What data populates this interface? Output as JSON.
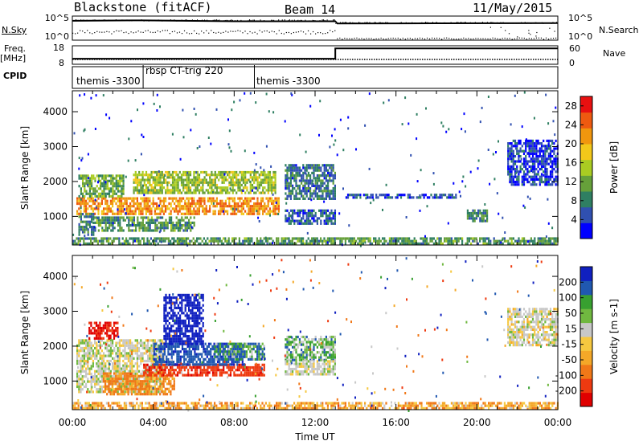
{
  "header": {
    "station": "Blackstone (fitACF)",
    "beam": "Beam 14",
    "date": "11/May/2015"
  },
  "side_labels": {
    "nsky": "N.Sky",
    "freq": "Freq.",
    "freq_unit": "[MHz]",
    "cpid": "CPID",
    "nsearch": "N.Search",
    "nave": "Nave"
  },
  "programs": [
    {
      "label": "themis -3300",
      "start_hour": 0.0
    },
    {
      "label": "rbsp CT-trig 220",
      "start_hour": 3.5
    },
    {
      "label": "themis -3300",
      "start_hour": 9.0
    }
  ],
  "colors": {
    "power": [
      "#0000ff",
      "#3050b0",
      "#2f7f62",
      "#66a03a",
      "#aacc22",
      "#f2c81a",
      "#f0960e",
      "#ee5a10",
      "#e81010"
    ],
    "velocity": [
      "#e00000",
      "#ee3a10",
      "#f07818",
      "#f4a828",
      "#f6c840",
      "#c8c8c8",
      "#70b840",
      "#38a030",
      "#2058b0",
      "#1020c0"
    ]
  },
  "chart_data": [
    {
      "type": "line",
      "name": "noise-panel",
      "left_axis": {
        "label": "N.Sky",
        "ticks": [
          "10^5",
          "10^0"
        ]
      },
      "right_axis": {
        "label": "N.Search",
        "ticks": [
          "10^5",
          "10^0"
        ]
      },
      "x": [
        0,
        3,
        3.5,
        8,
        13,
        13.1,
        18,
        24
      ],
      "series": [
        {
          "values": [
            4.3,
            4.4,
            4.4,
            4.2,
            4.2,
            3.7,
            3.75,
            3.8
          ]
        }
      ]
    },
    {
      "type": "line",
      "name": "freq-nave-panel",
      "left_axis": {
        "label": "Freq. [MHz]",
        "ticks": [
          "18",
          "8"
        ]
      },
      "right_axis": {
        "label": "Nave",
        "ticks": [
          "60",
          "0"
        ]
      },
      "x": [
        0,
        13,
        13,
        24
      ],
      "series": [
        {
          "values": [
            10.2,
            10.2,
            18,
            18
          ]
        },
        {
          "values": [
            30,
            30,
            30,
            30
          ]
        }
      ]
    },
    {
      "type": "heatmap",
      "name": "power-panel",
      "xlabel": "",
      "ylabel": "Slant Range [km]",
      "xlim": [
        0,
        24
      ],
      "ylim": [
        180,
        4600
      ],
      "yticks": [
        "1000",
        "2000",
        "3000",
        "4000"
      ],
      "colorbar": {
        "label": "Power [dB]",
        "ticks": [
          "4",
          "8",
          "12",
          "16",
          "20",
          "24",
          "28"
        ],
        "range": [
          0,
          30
        ]
      },
      "regions": [
        {
          "x0": 0.2,
          "x1": 10.2,
          "y0": 1100,
          "y1": 1550,
          "value": 22
        },
        {
          "x0": 0.3,
          "x1": 2.5,
          "y0": 1600,
          "y1": 2200,
          "value": 12
        },
        {
          "x0": 3.0,
          "x1": 10.0,
          "y0": 1700,
          "y1": 2300,
          "value": 14
        },
        {
          "x0": 1.0,
          "x1": 6.0,
          "y0": 600,
          "y1": 1000,
          "value": 10
        },
        {
          "x0": 0.3,
          "x1": 1.0,
          "y0": 500,
          "y1": 1100,
          "value": 8
        },
        {
          "x0": 10.5,
          "x1": 13.0,
          "y0": 1500,
          "y1": 2500,
          "value": 7
        },
        {
          "x0": 10.5,
          "x1": 13.0,
          "y0": 800,
          "y1": 1200,
          "value": 6
        },
        {
          "x0": 13.5,
          "x1": 19.0,
          "y0": 1550,
          "y1": 1650,
          "value": 5
        },
        {
          "x0": 19.5,
          "x1": 20.5,
          "y0": 900,
          "y1": 1200,
          "value": 9
        },
        {
          "x0": 21.5,
          "x1": 24.0,
          "y0": 1900,
          "y1": 3200,
          "value": 4
        },
        {
          "x0": 0.0,
          "x1": 24.0,
          "y0": 180,
          "y1": 400,
          "value": 10
        }
      ]
    },
    {
      "type": "heatmap",
      "name": "velocity-panel",
      "xlabel": "Time UT",
      "ylabel": "Slant Range [km]",
      "xlim": [
        0,
        24
      ],
      "ylim": [
        180,
        4600
      ],
      "xticks": [
        "00:00",
        "04:00",
        "08:00",
        "12:00",
        "16:00",
        "20:00",
        "00:00"
      ],
      "yticks": [
        "1000",
        "2000",
        "3000",
        "4000"
      ],
      "colorbar": {
        "label": "Velocity [m s-1]",
        "ticks": [
          "200",
          "100",
          "50",
          "15",
          "-15",
          "-50",
          "-100",
          "-200"
        ],
        "range": [
          -250,
          250
        ]
      },
      "regions": [
        {
          "x0": 0.2,
          "x1": 4.5,
          "y0": 700,
          "y1": 2200,
          "value": 0
        },
        {
          "x0": 0.8,
          "x1": 2.2,
          "y0": 2200,
          "y1": 2700,
          "value": -210
        },
        {
          "x0": 1.5,
          "x1": 5.0,
          "y0": 600,
          "y1": 1250,
          "value": -60
        },
        {
          "x0": 3.5,
          "x1": 9.5,
          "y0": 1200,
          "y1": 1500,
          "value": -180
        },
        {
          "x0": 4.0,
          "x1": 8.5,
          "y0": 1500,
          "y1": 2100,
          "value": 80
        },
        {
          "x0": 4.5,
          "x1": 6.5,
          "y0": 2100,
          "y1": 3500,
          "value": 160
        },
        {
          "x0": 7.0,
          "x1": 9.5,
          "y0": 1600,
          "y1": 2100,
          "value": 40
        },
        {
          "x0": 10.5,
          "x1": 13.0,
          "y0": 1600,
          "y1": 2300,
          "value": 30
        },
        {
          "x0": 10.5,
          "x1": 13.0,
          "y0": 1200,
          "y1": 1600,
          "value": 0
        },
        {
          "x0": 21.5,
          "x1": 24.0,
          "y0": 2000,
          "y1": 3100,
          "value": -5
        },
        {
          "x0": 0.0,
          "x1": 24.0,
          "y0": 180,
          "y1": 400,
          "value": -40
        }
      ]
    }
  ]
}
